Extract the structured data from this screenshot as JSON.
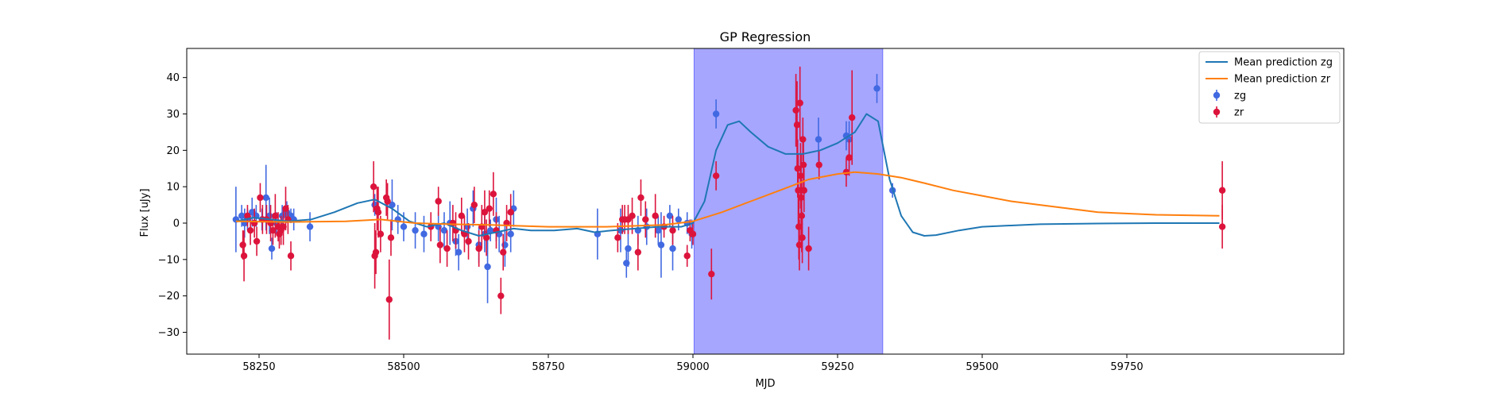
{
  "chart_data": {
    "type": "scatter",
    "title": "GP Regression",
    "xlabel": "MJD",
    "ylabel": "Flux [uJy]",
    "xlim": [
      58125,
      60125
    ],
    "ylim": [
      -36,
      48
    ],
    "xticks": [
      58250,
      58500,
      58750,
      59000,
      59250,
      59500,
      59750
    ],
    "yticks": [
      -30,
      -20,
      -10,
      0,
      10,
      20,
      30,
      40
    ],
    "grid": false,
    "legend_position": "top-right",
    "shaded_region": {
      "x_start": 59002,
      "x_end": 59328,
      "color": "#a6a6ff"
    },
    "legend": [
      {
        "label": "Mean prediction zg",
        "color": "#1f77b4",
        "kind": "line"
      },
      {
        "label": "Mean prediction zr",
        "color": "#ff7f0e",
        "kind": "line"
      },
      {
        "label": "zg",
        "color": "#4169e1",
        "kind": "errorbar"
      },
      {
        "label": "zr",
        "color": "#dc143c",
        "kind": "errorbar"
      }
    ],
    "lines": [
      {
        "name": "Mean prediction zg",
        "color": "#1f77b4",
        "x": [
          58210,
          58240,
          58270,
          58300,
          58340,
          58380,
          58420,
          58450,
          58480,
          58510,
          58540,
          58570,
          58600,
          58630,
          58660,
          58690,
          58720,
          58760,
          58800,
          58830,
          58860,
          58900,
          58940,
          58980,
          59000,
          59020,
          59040,
          59060,
          59080,
          59100,
          59130,
          59160,
          59190,
          59220,
          59250,
          59280,
          59300,
          59320,
          59340,
          59360,
          59380,
          59400,
          59420,
          59460,
          59500,
          59600,
          59700,
          59800,
          59910
        ],
        "y": [
          0.5,
          1.5,
          1.0,
          0.5,
          1.0,
          3.0,
          5.5,
          6.5,
          4.0,
          0.5,
          -1.0,
          0.0,
          -2.0,
          -3.5,
          -2.5,
          -1.5,
          -2.0,
          -2.0,
          -1.5,
          -2.5,
          -2.0,
          -1.5,
          -1.0,
          -1.0,
          0.0,
          6.0,
          20.0,
          27.0,
          28.0,
          25.0,
          21.0,
          19.0,
          19.0,
          20.0,
          22.0,
          25.0,
          30.0,
          28.0,
          12.0,
          2.0,
          -2.5,
          -3.5,
          -3.3,
          -2.0,
          -1.0,
          -0.3,
          -0.1,
          0.0,
          0.0
        ]
      },
      {
        "name": "Mean prediction zr",
        "color": "#ff7f0e",
        "x": [
          58210,
          58300,
          58400,
          58460,
          58520,
          58580,
          58650,
          58750,
          58850,
          58950,
          59000,
          59050,
          59100,
          59150,
          59200,
          59250,
          59280,
          59320,
          59360,
          59400,
          59450,
          59500,
          59550,
          59600,
          59700,
          59800,
          59910
        ],
        "y": [
          0.5,
          0.3,
          0.5,
          1.0,
          0.0,
          -0.3,
          -0.5,
          -1.0,
          -1.0,
          -0.5,
          0.5,
          3.0,
          6.0,
          9.0,
          12.0,
          13.5,
          14.0,
          13.5,
          12.5,
          11.0,
          9.0,
          7.5,
          6.0,
          5.0,
          3.0,
          2.3,
          2.0
        ]
      }
    ],
    "series": [
      {
        "name": "zg",
        "color": "#4169e1",
        "points": [
          [
            58210,
            1,
            9
          ],
          [
            58220,
            2,
            3
          ],
          [
            58225,
            0,
            4
          ],
          [
            58230,
            1,
            3
          ],
          [
            58238,
            3,
            4
          ],
          [
            58245,
            2,
            3
          ],
          [
            58255,
            1,
            3
          ],
          [
            58262,
            7,
            9
          ],
          [
            58268,
            2,
            5
          ],
          [
            58272,
            -7,
            3
          ],
          [
            58280,
            0,
            3
          ],
          [
            58290,
            2,
            3
          ],
          [
            58298,
            3,
            3
          ],
          [
            58305,
            2,
            2
          ],
          [
            58310,
            1,
            3
          ],
          [
            58338,
            -1,
            4
          ],
          [
            58450,
            5,
            3
          ],
          [
            58480,
            5,
            7
          ],
          [
            58490,
            1,
            4
          ],
          [
            58500,
            -1,
            4
          ],
          [
            58520,
            -2,
            5
          ],
          [
            58535,
            -3,
            5
          ],
          [
            58560,
            -1,
            4
          ],
          [
            58570,
            -2,
            5
          ],
          [
            58580,
            0,
            6
          ],
          [
            58590,
            -5,
            4
          ],
          [
            58595,
            -8,
            5
          ],
          [
            58610,
            -1,
            5
          ],
          [
            58620,
            4,
            5
          ],
          [
            58630,
            -6,
            5
          ],
          [
            58640,
            -3,
            5
          ],
          [
            58645,
            -12,
            10
          ],
          [
            58650,
            -2,
            3
          ],
          [
            58660,
            1,
            6
          ],
          [
            58665,
            -3,
            5
          ],
          [
            58675,
            -6,
            6
          ],
          [
            58685,
            -3,
            5
          ],
          [
            58690,
            4,
            5
          ],
          [
            58835,
            -3,
            7
          ],
          [
            58875,
            -2,
            6
          ],
          [
            58885,
            -11,
            4
          ],
          [
            58888,
            -7,
            5
          ],
          [
            58905,
            -2,
            4
          ],
          [
            58920,
            -1,
            5
          ],
          [
            58940,
            -2,
            4
          ],
          [
            58945,
            -6,
            9
          ],
          [
            58960,
            2,
            3
          ],
          [
            58965,
            -7,
            6
          ],
          [
            58975,
            1,
            3
          ],
          [
            58990,
            0,
            3
          ],
          [
            58998,
            -3,
            4
          ],
          [
            59040,
            30,
            4
          ],
          [
            59217,
            23,
            6
          ],
          [
            59265,
            24,
            4
          ],
          [
            59270,
            23,
            5
          ],
          [
            59318,
            37,
            4
          ],
          [
            59345,
            9,
            2
          ]
        ]
      },
      {
        "name": "zr",
        "color": "#dc143c",
        "points": [
          [
            58222,
            -6,
            4
          ],
          [
            58224,
            -9,
            7
          ],
          [
            58230,
            2,
            3
          ],
          [
            58235,
            -2,
            4
          ],
          [
            58242,
            0,
            4
          ],
          [
            58246,
            -5,
            4
          ],
          [
            58252,
            7,
            4
          ],
          [
            58256,
            1,
            4
          ],
          [
            58263,
            1,
            4
          ],
          [
            58270,
            0,
            5
          ],
          [
            58274,
            -2,
            4
          ],
          [
            58278,
            2,
            6
          ],
          [
            58283,
            -1,
            4
          ],
          [
            58285,
            -3,
            4
          ],
          [
            58288,
            -2,
            4
          ],
          [
            58292,
            -1,
            5
          ],
          [
            58296,
            4,
            6
          ],
          [
            58300,
            1,
            4
          ],
          [
            58305,
            -9,
            4
          ],
          [
            58448,
            10,
            7
          ],
          [
            58450,
            -9,
            9
          ],
          [
            58452,
            -8,
            6
          ],
          [
            58454,
            4,
            6
          ],
          [
            58456,
            3,
            7
          ],
          [
            58460,
            -3,
            5
          ],
          [
            58470,
            7,
            5
          ],
          [
            58472,
            6,
            5
          ],
          [
            58475,
            -21,
            11
          ],
          [
            58478,
            -4,
            5
          ],
          [
            58547,
            -1,
            4
          ],
          [
            58560,
            6,
            4
          ],
          [
            58563,
            -6,
            5
          ],
          [
            58575,
            -7,
            5
          ],
          [
            58585,
            0,
            5
          ],
          [
            58590,
            -2,
            5
          ],
          [
            58600,
            2,
            5
          ],
          [
            58605,
            -3,
            5
          ],
          [
            58612,
            -5,
            5
          ],
          [
            58622,
            5,
            5
          ],
          [
            58630,
            -7,
            5
          ],
          [
            58635,
            -1,
            6
          ],
          [
            58640,
            3,
            6
          ],
          [
            58643,
            -4,
            5
          ],
          [
            58648,
            4,
            5
          ],
          [
            58655,
            8,
            6
          ],
          [
            58660,
            -2,
            5
          ],
          [
            58668,
            -20,
            5
          ],
          [
            58672,
            -8,
            5
          ],
          [
            58678,
            0,
            5
          ],
          [
            58685,
            3,
            5
          ],
          [
            58870,
            -4,
            4
          ],
          [
            58878,
            1,
            4
          ],
          [
            58882,
            1,
            4
          ],
          [
            58888,
            1,
            4
          ],
          [
            58895,
            2,
            5
          ],
          [
            58905,
            -8,
            5
          ],
          [
            58910,
            7,
            5
          ],
          [
            58918,
            1,
            5
          ],
          [
            58935,
            2,
            6
          ],
          [
            58950,
            -1,
            3
          ],
          [
            58965,
            -2,
            4
          ],
          [
            58990,
            -9,
            3
          ],
          [
            58995,
            -2,
            3
          ],
          [
            59000,
            -3,
            3
          ],
          [
            59032,
            -14,
            7
          ],
          [
            59040,
            13,
            4
          ],
          [
            59178,
            31,
            10
          ],
          [
            59180,
            27,
            12
          ],
          [
            59181,
            15,
            8
          ],
          [
            59182,
            9,
            10
          ],
          [
            59183,
            -1,
            9
          ],
          [
            59184,
            -6,
            7
          ],
          [
            59185,
            33,
            10
          ],
          [
            59186,
            13,
            9
          ],
          [
            59187,
            7,
            12
          ],
          [
            59188,
            2,
            10
          ],
          [
            59189,
            -4,
            7
          ],
          [
            59190,
            23,
            6
          ],
          [
            59191,
            16,
            7
          ],
          [
            59192,
            9,
            6
          ],
          [
            59200,
            -7,
            6
          ],
          [
            59218,
            16,
            4
          ],
          [
            59265,
            14,
            4
          ],
          [
            59270,
            18,
            5
          ],
          [
            59275,
            29,
            13
          ],
          [
            59915,
            9,
            8
          ],
          [
            59915,
            -1,
            6
          ]
        ]
      }
    ]
  }
}
